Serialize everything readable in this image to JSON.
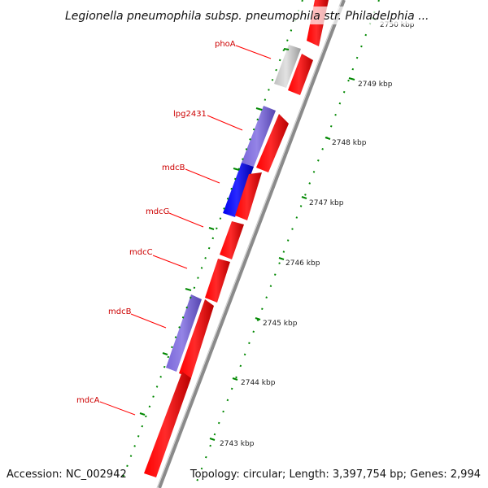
{
  "title": "Legionella pneumophila subsp. pneumophila str. Philadelphia ...",
  "footer": {
    "accession": "Accession: NC_002942",
    "summary": "Topology: circular; Length: 3,397,754 bp; Genes: 2,994"
  },
  "colors": {
    "forward_gene": "#ff0000",
    "reverse_gene_light": "#7b68d9",
    "reverse_gene_dark": "#0000ee",
    "other_gene": "#c0c0c0",
    "backbone": "#8c8c8c",
    "tick": "#008800",
    "label": "#cc0000"
  },
  "gene_labels": [
    "phoA",
    "lpg2431",
    "mdcB",
    "mdcG",
    "mdcC",
    "mdcB",
    "mdcA"
  ],
  "kbp_labels": [
    "2750 kbp",
    "2749 kbp",
    "2748 kbp",
    "2747 kbp",
    "2746 kbp",
    "2745 kbp",
    "2744 kbp",
    "2743 kbp"
  ]
}
